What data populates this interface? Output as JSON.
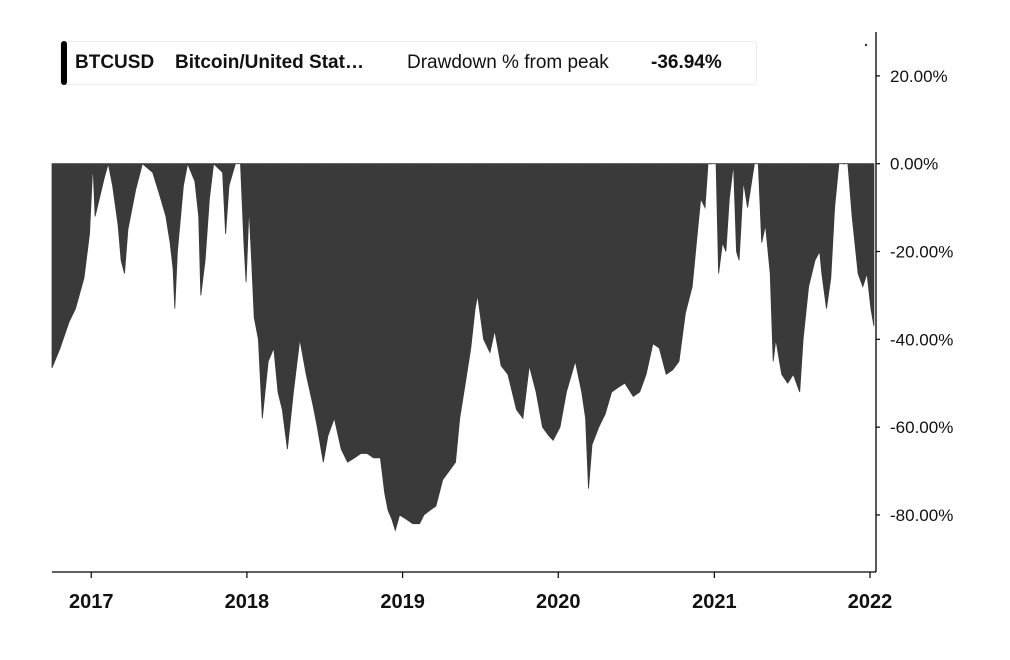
{
  "legend": {
    "symbol": "BTCUSD",
    "name": "Bitcoin/United Stat…",
    "label": "Drawdown % from peak",
    "value": "-36.94%"
  },
  "colors": {
    "area": "#3a3a3a",
    "axis": "#000000",
    "legend_accent": "#000000"
  },
  "chart_data": {
    "type": "area",
    "series_label": "Drawdown % from peak",
    "x_axis": {
      "type": "date",
      "range": [
        "2016-10-01",
        "2022-01-15"
      ],
      "ticks": [
        "2017",
        "2018",
        "2019",
        "2020",
        "2021",
        "2022"
      ]
    },
    "y_axis": {
      "position": "right",
      "unit": "%",
      "range": [
        -93,
        30
      ],
      "ticks": [
        20,
        0,
        -20,
        -40,
        -60,
        -80
      ],
      "tick_labels": [
        "20.00%",
        "0.00%",
        "-20.00%",
        "-40.00%",
        "-60.00%",
        "-80.00%"
      ]
    },
    "zero_line": "dotted",
    "points": [
      [
        "2016-10-01",
        -46.5
      ],
      [
        "2016-10-20",
        -42
      ],
      [
        "2016-11-10",
        -36
      ],
      [
        "2016-11-25",
        -33
      ],
      [
        "2016-12-15",
        -26
      ],
      [
        "2016-12-28",
        -16
      ],
      [
        "2017-01-05",
        0
      ],
      [
        "2017-01-10",
        -12
      ],
      [
        "2017-02-01",
        -3
      ],
      [
        "2017-02-10",
        0
      ],
      [
        "2017-02-20",
        -5
      ],
      [
        "2017-03-05",
        -14
      ],
      [
        "2017-03-12",
        -22
      ],
      [
        "2017-03-20",
        -25
      ],
      [
        "2017-03-28",
        -15
      ],
      [
        "2017-04-15",
        -6
      ],
      [
        "2017-05-01",
        0
      ],
      [
        "2017-05-25",
        -2
      ],
      [
        "2017-06-10",
        -7
      ],
      [
        "2017-06-25",
        -12
      ],
      [
        "2017-07-05",
        -18
      ],
      [
        "2017-07-12",
        -24
      ],
      [
        "2017-07-16",
        -33
      ],
      [
        "2017-07-22",
        -20
      ],
      [
        "2017-08-05",
        -5
      ],
      [
        "2017-08-15",
        0
      ],
      [
        "2017-09-01",
        -4
      ],
      [
        "2017-09-10",
        -12
      ],
      [
        "2017-09-15",
        -30
      ],
      [
        "2017-09-25",
        -22
      ],
      [
        "2017-10-05",
        -8
      ],
      [
        "2017-10-15",
        0
      ],
      [
        "2017-11-05",
        -2
      ],
      [
        "2017-11-12",
        -16
      ],
      [
        "2017-11-20",
        -5
      ],
      [
        "2017-12-05",
        0
      ],
      [
        "2017-12-17",
        0
      ],
      [
        "2017-12-25",
        -18
      ],
      [
        "2017-12-30",
        -27
      ],
      [
        "2018-01-06",
        -10
      ],
      [
        "2018-01-12",
        -22
      ],
      [
        "2018-01-18",
        -35
      ],
      [
        "2018-01-28",
        -40
      ],
      [
        "2018-02-06",
        -58
      ],
      [
        "2018-02-20",
        -45
      ],
      [
        "2018-03-05",
        -42
      ],
      [
        "2018-03-15",
        -52
      ],
      [
        "2018-03-25",
        -56
      ],
      [
        "2018-04-06",
        -65
      ],
      [
        "2018-04-20",
        -52
      ],
      [
        "2018-05-05",
        -40
      ],
      [
        "2018-05-20",
        -48
      ],
      [
        "2018-06-05",
        -55
      ],
      [
        "2018-06-15",
        -60
      ],
      [
        "2018-06-29",
        -68
      ],
      [
        "2018-07-10",
        -62
      ],
      [
        "2018-07-25",
        -58
      ],
      [
        "2018-08-10",
        -65
      ],
      [
        "2018-08-25",
        -68
      ],
      [
        "2018-09-10",
        -67
      ],
      [
        "2018-09-25",
        -66
      ],
      [
        "2018-10-10",
        -66
      ],
      [
        "2018-10-25",
        -67
      ],
      [
        "2018-11-10",
        -67
      ],
      [
        "2018-11-20",
        -75
      ],
      [
        "2018-11-28",
        -79
      ],
      [
        "2018-12-07",
        -81
      ],
      [
        "2018-12-15",
        -83.5
      ],
      [
        "2018-12-25",
        -80
      ],
      [
        "2019-01-10",
        -81
      ],
      [
        "2019-01-25",
        -82
      ],
      [
        "2019-02-10",
        -82
      ],
      [
        "2019-02-20",
        -80
      ],
      [
        "2019-03-05",
        -79
      ],
      [
        "2019-03-20",
        -78
      ],
      [
        "2019-04-05",
        -72
      ],
      [
        "2019-04-20",
        -70
      ],
      [
        "2019-05-05",
        -68
      ],
      [
        "2019-05-15",
        -58
      ],
      [
        "2019-05-28",
        -50
      ],
      [
        "2019-06-10",
        -42
      ],
      [
        "2019-06-20",
        -33
      ],
      [
        "2019-06-26",
        -30
      ],
      [
        "2019-07-10",
        -40
      ],
      [
        "2019-07-25",
        -43
      ],
      [
        "2019-08-05",
        -38
      ],
      [
        "2019-08-20",
        -46
      ],
      [
        "2019-09-05",
        -48
      ],
      [
        "2019-09-25",
        -56
      ],
      [
        "2019-10-10",
        -58
      ],
      [
        "2019-10-25",
        -46
      ],
      [
        "2019-11-10",
        -52
      ],
      [
        "2019-11-25",
        -60
      ],
      [
        "2019-12-10",
        -62
      ],
      [
        "2019-12-20",
        -63
      ],
      [
        "2020-01-05",
        -60
      ],
      [
        "2020-01-20",
        -52
      ],
      [
        "2020-02-10",
        -45
      ],
      [
        "2020-02-25",
        -52
      ],
      [
        "2020-03-05",
        -58
      ],
      [
        "2020-03-12",
        -74
      ],
      [
        "2020-03-20",
        -64
      ],
      [
        "2020-04-05",
        -60
      ],
      [
        "2020-04-20",
        -57
      ],
      [
        "2020-05-05",
        -52
      ],
      [
        "2020-05-20",
        -51
      ],
      [
        "2020-06-05",
        -50
      ],
      [
        "2020-06-25",
        -53
      ],
      [
        "2020-07-10",
        -52
      ],
      [
        "2020-07-25",
        -48
      ],
      [
        "2020-08-10",
        -41
      ],
      [
        "2020-08-25",
        -42
      ],
      [
        "2020-09-10",
        -48
      ],
      [
        "2020-09-25",
        -47
      ],
      [
        "2020-10-10",
        -45
      ],
      [
        "2020-10-25",
        -34
      ],
      [
        "2020-11-10",
        -28
      ],
      [
        "2020-11-20",
        -18
      ],
      [
        "2020-11-30",
        -8
      ],
      [
        "2020-12-10",
        -10
      ],
      [
        "2020-12-17",
        0
      ],
      [
        "2021-01-05",
        0
      ],
      [
        "2021-01-11",
        -25
      ],
      [
        "2021-01-20",
        -18
      ],
      [
        "2021-01-28",
        -20
      ],
      [
        "2021-02-05",
        -8
      ],
      [
        "2021-02-15",
        0
      ],
      [
        "2021-02-22",
        -20
      ],
      [
        "2021-02-28",
        -22
      ],
      [
        "2021-03-10",
        -4
      ],
      [
        "2021-03-20",
        -10
      ],
      [
        "2021-04-05",
        0
      ],
      [
        "2021-04-14",
        0
      ],
      [
        "2021-04-22",
        -18
      ],
      [
        "2021-05-01",
        -14
      ],
      [
        "2021-05-12",
        -25
      ],
      [
        "2021-05-19",
        -45
      ],
      [
        "2021-05-25",
        -40
      ],
      [
        "2021-06-08",
        -48
      ],
      [
        "2021-06-22",
        -50
      ],
      [
        "2021-07-05",
        -48
      ],
      [
        "2021-07-20",
        -52
      ],
      [
        "2021-07-28",
        -40
      ],
      [
        "2021-08-10",
        -28
      ],
      [
        "2021-08-25",
        -22
      ],
      [
        "2021-09-05",
        -20
      ],
      [
        "2021-09-10",
        -25
      ],
      [
        "2021-09-21",
        -33
      ],
      [
        "2021-10-01",
        -26
      ],
      [
        "2021-10-10",
        -10
      ],
      [
        "2021-10-20",
        0
      ],
      [
        "2021-11-10",
        0
      ],
      [
        "2021-11-20",
        -12
      ],
      [
        "2021-12-04",
        -25
      ],
      [
        "2021-12-15",
        -28
      ],
      [
        "2021-12-25",
        -25
      ],
      [
        "2022-01-03",
        -33
      ],
      [
        "2022-01-10",
        -36.94
      ]
    ]
  }
}
